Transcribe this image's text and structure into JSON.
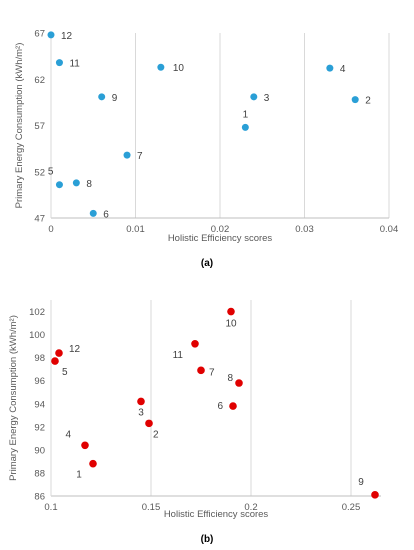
{
  "chart_data": [
    {
      "panel": "(a)",
      "type": "scatter",
      "title": "",
      "xlabel": "Holistic Efficiency scores",
      "ylabel": "Primary Energy Consumption (kWh/m²)",
      "xlim": [
        0,
        0.04
      ],
      "ylim": [
        47,
        67
      ],
      "xticks": [
        "0",
        "0.01",
        "0.02",
        "0.03",
        "0.04"
      ],
      "yticks": [
        "47",
        "52",
        "57",
        "62",
        "67"
      ],
      "grid": "vertical",
      "color": "#2a9fd6",
      "points": [
        {
          "label": "1",
          "x": 0.023,
          "y": 56.8
        },
        {
          "label": "2",
          "x": 0.036,
          "y": 59.8
        },
        {
          "label": "3",
          "x": 0.024,
          "y": 60.1
        },
        {
          "label": "4",
          "x": 0.033,
          "y": 63.2
        },
        {
          "label": "5",
          "x": 0.001,
          "y": 50.6
        },
        {
          "label": "6",
          "x": 0.005,
          "y": 47.5
        },
        {
          "label": "7",
          "x": 0.009,
          "y": 53.8
        },
        {
          "label": "8",
          "x": 0.003,
          "y": 50.8
        },
        {
          "label": "9",
          "x": 0.006,
          "y": 60.1
        },
        {
          "label": "10",
          "x": 0.013,
          "y": 63.3
        },
        {
          "label": "11",
          "x": 0.001,
          "y": 63.8
        },
        {
          "label": "12",
          "x": 0.0,
          "y": 66.8
        }
      ]
    },
    {
      "panel": "(b)",
      "type": "scatter",
      "title": "",
      "xlabel": "Holistic Efficiency scores",
      "ylabel": "Primary Energy Consumption (kWh/m²)",
      "xlim": [
        0.1,
        0.265
      ],
      "ylim": [
        86,
        103
      ],
      "xticks": [
        "0.1",
        "0.15",
        "0.2",
        "0.25"
      ],
      "yticks": [
        "86",
        "88",
        "90",
        "92",
        "94",
        "96",
        "98",
        "100",
        "102"
      ],
      "grid": "vertical",
      "color": "#e00000",
      "points": [
        {
          "label": "1",
          "x": 0.121,
          "y": 88.8
        },
        {
          "label": "2",
          "x": 0.149,
          "y": 92.3
        },
        {
          "label": "3",
          "x": 0.145,
          "y": 94.2
        },
        {
          "label": "4",
          "x": 0.117,
          "y": 90.4
        },
        {
          "label": "5",
          "x": 0.102,
          "y": 97.7
        },
        {
          "label": "6",
          "x": 0.191,
          "y": 93.8
        },
        {
          "label": "7",
          "x": 0.175,
          "y": 96.9
        },
        {
          "label": "8",
          "x": 0.194,
          "y": 95.8
        },
        {
          "label": "9",
          "x": 0.262,
          "y": 86.1
        },
        {
          "label": "10",
          "x": 0.19,
          "y": 102.0
        },
        {
          "label": "11",
          "x": 0.172,
          "y": 99.2
        },
        {
          "label": "12",
          "x": 0.104,
          "y": 98.4
        }
      ]
    }
  ]
}
